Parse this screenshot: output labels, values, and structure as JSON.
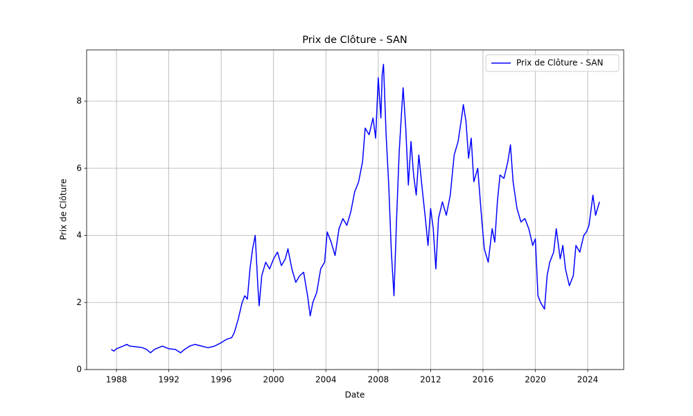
{
  "chart_data": {
    "type": "line",
    "title": "Prix de Clôture - SAN",
    "xlabel": "Date",
    "ylabel": "Prix de Clôture",
    "x": [
      1987.6,
      1987.8,
      1988.0,
      1988.5,
      1988.8,
      1989.0,
      1989.5,
      1990.0,
      1990.3,
      1990.6,
      1990.9,
      1991.2,
      1991.5,
      1992.0,
      1992.5,
      1992.9,
      1993.2,
      1993.6,
      1994.0,
      1994.5,
      1995.0,
      1995.5,
      1996.0,
      1996.4,
      1996.8,
      1997.0,
      1997.3,
      1997.6,
      1997.8,
      1998.0,
      1998.2,
      1998.4,
      1998.6,
      1998.8,
      1998.9,
      1999.1,
      1999.4,
      1999.7,
      2000.0,
      2000.3,
      2000.6,
      2000.9,
      2001.1,
      2001.4,
      2001.7,
      2002.0,
      2002.3,
      2002.6,
      2002.8,
      2003.0,
      2003.3,
      2003.6,
      2003.9,
      2004.1,
      2004.4,
      2004.7,
      2005.0,
      2005.3,
      2005.6,
      2005.9,
      2006.2,
      2006.5,
      2006.8,
      2007.0,
      2007.3,
      2007.6,
      2007.8,
      2008.0,
      2008.2,
      2008.3,
      2008.4,
      2008.6,
      2008.8,
      2009.0,
      2009.2,
      2009.4,
      2009.6,
      2009.8,
      2009.9,
      2010.1,
      2010.3,
      2010.5,
      2010.7,
      2010.9,
      2011.1,
      2011.3,
      2011.6,
      2011.8,
      2012.0,
      2012.2,
      2012.4,
      2012.6,
      2012.9,
      2013.2,
      2013.5,
      2013.8,
      2014.1,
      2014.4,
      2014.5,
      2014.7,
      2014.9,
      2015.1,
      2015.3,
      2015.6,
      2015.9,
      2016.1,
      2016.4,
      2016.7,
      2016.9,
      2017.1,
      2017.3,
      2017.6,
      2017.9,
      2018.1,
      2018.3,
      2018.6,
      2018.9,
      2019.2,
      2019.5,
      2019.8,
      2020.0,
      2020.2,
      2020.4,
      2020.7,
      2020.9,
      2021.1,
      2021.4,
      2021.6,
      2021.9,
      2022.1,
      2022.3,
      2022.6,
      2022.9,
      2023.1,
      2023.4,
      2023.7,
      2023.9,
      2024.1,
      2024.4,
      2024.6,
      2024.9
    ],
    "series": [
      {
        "name": "Prix de Clôture - SAN",
        "color": "#0000ff",
        "values": [
          0.6,
          0.55,
          0.62,
          0.7,
          0.75,
          0.7,
          0.68,
          0.65,
          0.6,
          0.5,
          0.6,
          0.65,
          0.7,
          0.62,
          0.6,
          0.5,
          0.6,
          0.7,
          0.75,
          0.7,
          0.65,
          0.7,
          0.8,
          0.9,
          0.95,
          1.1,
          1.5,
          2.0,
          2.2,
          2.1,
          3.0,
          3.6,
          4.0,
          2.5,
          1.9,
          2.8,
          3.2,
          3.0,
          3.3,
          3.5,
          3.1,
          3.3,
          3.6,
          3.0,
          2.6,
          2.8,
          2.9,
          2.2,
          1.6,
          2.0,
          2.3,
          3.0,
          3.2,
          4.1,
          3.8,
          3.4,
          4.2,
          4.5,
          4.3,
          4.7,
          5.3,
          5.6,
          6.2,
          7.2,
          7.0,
          7.5,
          6.9,
          8.7,
          7.5,
          8.8,
          9.1,
          7.0,
          5.5,
          3.5,
          2.2,
          4.5,
          6.5,
          7.8,
          8.4,
          7.2,
          5.5,
          6.8,
          5.8,
          5.2,
          6.4,
          5.6,
          4.5,
          3.7,
          4.8,
          4.2,
          3.0,
          4.5,
          5.0,
          4.6,
          5.2,
          6.4,
          6.8,
          7.6,
          7.9,
          7.4,
          6.3,
          6.9,
          5.6,
          6.0,
          4.5,
          3.6,
          3.2,
          4.2,
          3.8,
          5.0,
          5.8,
          5.7,
          6.2,
          6.7,
          5.6,
          4.8,
          4.4,
          4.5,
          4.2,
          3.7,
          3.9,
          2.2,
          2.0,
          1.8,
          2.8,
          3.2,
          3.5,
          4.2,
          3.3,
          3.7,
          3.0,
          2.5,
          2.8,
          3.7,
          3.5,
          4.0,
          4.1,
          4.3,
          5.2,
          4.6,
          5.0
        ]
      }
    ],
    "xlim": [
      1985.72,
      2026.75
    ],
    "xticks": [
      1988,
      1992,
      1996,
      2000,
      2004,
      2008,
      2012,
      2016,
      2020,
      2024
    ],
    "ylim": [
      0,
      9.53
    ],
    "yticks": [
      0,
      2,
      4,
      6,
      8
    ],
    "grid": true,
    "legend": "upper right"
  }
}
